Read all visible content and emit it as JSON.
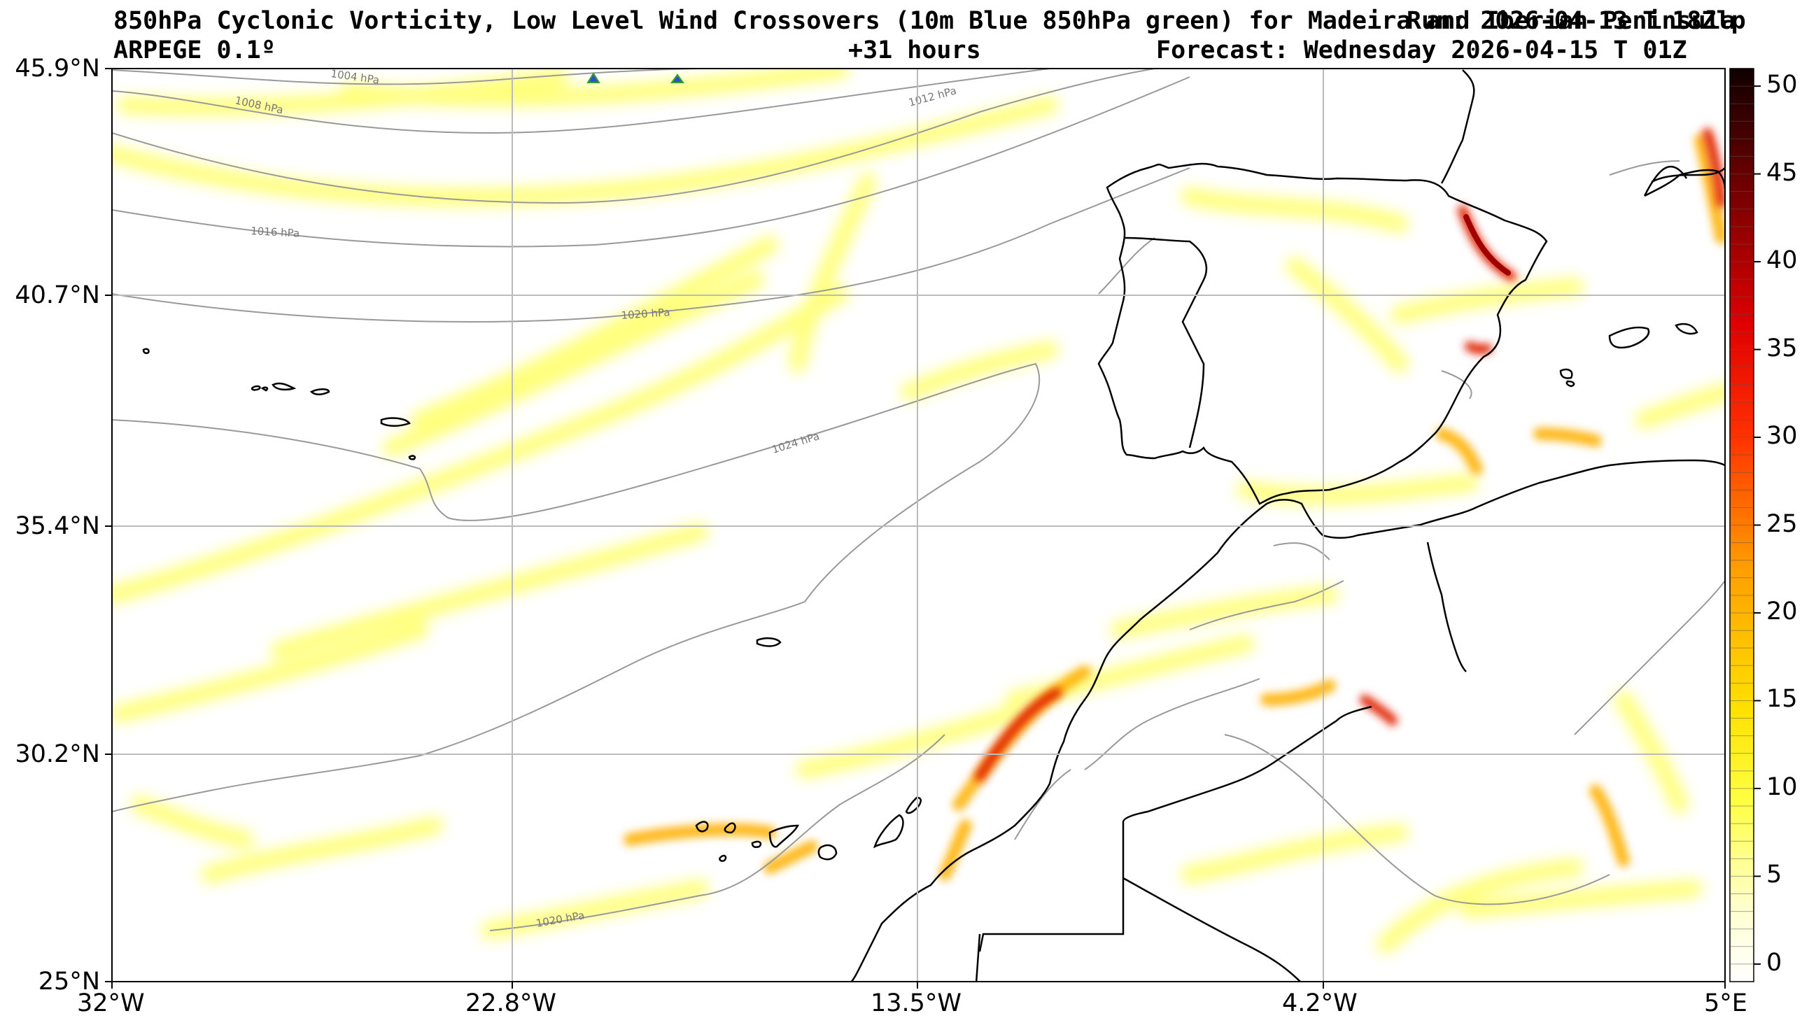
{
  "header": {
    "title": "850hPa Cyclonic Vorticity, Low Level Wind Crossovers (10m Blue 850hPa green) for Madeira and Iberian Peninsula",
    "run_text": "Run: 2026-04-13 T 18Z",
    "model": "ARPEGE 0.1º",
    "lead": "+31 hours",
    "forecast": "Forecast: Wednesday 2026-04-15 T 01Z",
    "overlap_text": "Run: 2026-04-13 T 18Zlp"
  },
  "axes": {
    "y_ticks": [
      "45.9°N",
      "40.7°N",
      "35.4°N",
      "30.2°N",
      "25°N"
    ],
    "x_ticks": [
      "32°W",
      "22.8°W",
      "13.5°W",
      "4.2°W",
      "5°E"
    ]
  },
  "colorbar": {
    "ticks": [
      "50",
      "45",
      "40",
      "35",
      "30",
      "25",
      "20",
      "15",
      "10",
      "5",
      "0"
    ],
    "colors": [
      "#ffffe0",
      "#ffff80",
      "#ffff00",
      "#ffd700",
      "#ffa500",
      "#ff6a00",
      "#ff0000",
      "#d00000",
      "#8b0000",
      "#400000",
      "#000000"
    ]
  },
  "isobars": [
    "1004 hPa",
    "1008 hPa",
    "1012 hPa",
    "1016 hPa",
    "1020 hPa",
    "1024 hPa",
    "1020 hPa"
  ],
  "colors": {
    "coast": "#000000",
    "isobar": "#888888",
    "grid": "#bbbbbb"
  }
}
